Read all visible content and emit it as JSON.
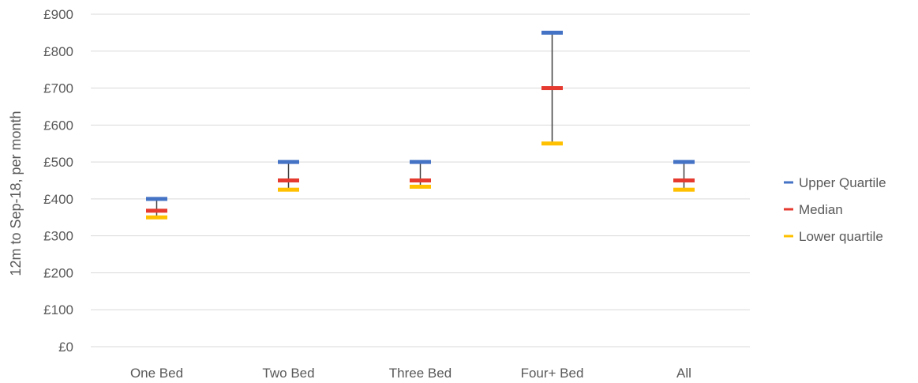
{
  "chart_data": {
    "type": "stock-hilo",
    "title": "",
    "xlabel": "",
    "ylabel": "12m to Sep-18, per month",
    "ylim": [
      0,
      900
    ],
    "y_ticks": [
      "£0",
      "£100",
      "£200",
      "£300",
      "£400",
      "£500",
      "£600",
      "£700",
      "£800",
      "£900"
    ],
    "y_tick_values": [
      0,
      100,
      200,
      300,
      400,
      500,
      600,
      700,
      800,
      900
    ],
    "grid": true,
    "legend_position": "right",
    "categories": [
      "One Bed",
      "Two Bed",
      "Three Bed",
      "Four+ Bed",
      "All"
    ],
    "series": [
      {
        "name": "Upper Quartile",
        "color": "#4472C4",
        "values": [
          400,
          500,
          500,
          850,
          500
        ]
      },
      {
        "name": "Median",
        "color": "#E53A2F",
        "values": [
          368,
          450,
          450,
          700,
          450
        ]
      },
      {
        "name": "Lower quartile",
        "color": "#FFC000",
        "values": [
          350,
          425,
          433,
          550,
          425
        ]
      }
    ]
  }
}
